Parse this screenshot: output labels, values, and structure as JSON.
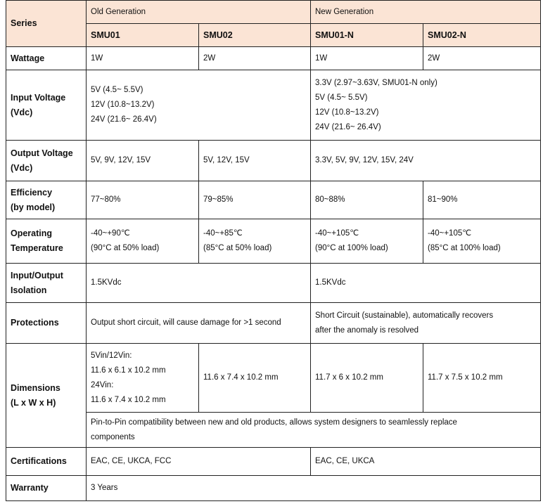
{
  "header": {
    "series_label": "Series",
    "old_generation": "Old Generation",
    "new_generation": "New Generation",
    "models": [
      "SMU01",
      "SMU02",
      "SMU01-N",
      "SMU02-N"
    ]
  },
  "colors": {
    "header_bg": "#fbe4d5",
    "border": "#222222"
  },
  "rows": {
    "wattage": {
      "label": "Wattage",
      "values": [
        "1W",
        "2W",
        "1W",
        "2W"
      ]
    },
    "input_voltage": {
      "label": [
        "Input Voltage",
        "(Vdc)"
      ],
      "old": [
        "5V (4.5~ 5.5V)",
        "12V (10.8~13.2V)",
        "24V (21.6~ 26.4V)"
      ],
      "new": [
        "3.3V (2.97~3.63V, SMU01-N only)",
        "5V (4.5~ 5.5V)",
        "12V (10.8~13.2V)",
        "24V (21.6~ 26.4V)"
      ]
    },
    "output_voltage": {
      "label": [
        "Output Voltage",
        "(Vdc)"
      ],
      "values": [
        "5V, 9V, 12V, 15V",
        "5V, 12V, 15V",
        "3.3V, 5V, 9V, 12V, 15V, 24V"
      ]
    },
    "efficiency": {
      "label": [
        "Efficiency",
        "(by model)"
      ],
      "values": [
        "77~80%",
        "79~85%",
        "80~88%",
        "81~90%"
      ]
    },
    "operating_temperature": {
      "label": [
        "Operating",
        "Temperature"
      ],
      "values": [
        [
          "-40~+90℃",
          "(90°C at 50% load)"
        ],
        [
          "-40~+85℃",
          "(85°C at 50% load)"
        ],
        [
          "-40~+105℃",
          "(90°C at 100% load)"
        ],
        [
          "-40~+105℃",
          "(85°C at 100% load)"
        ]
      ]
    },
    "isolation": {
      "label": [
        "Input/Output",
        "Isolation"
      ],
      "values": [
        "1.5KVdc",
        "1.5KVdc"
      ]
    },
    "protections": {
      "label": "Protections",
      "old": "Output short circuit, will cause damage for >1 second",
      "new": [
        "Short Circuit (sustainable), automatically recovers",
        "after the anomaly is resolved"
      ]
    },
    "dimensions": {
      "label": [
        "Dimensions",
        "(L x W x H)"
      ],
      "smu01": [
        "5Vin/12Vin:",
        "11.6 x 6.1 x 10.2 mm",
        "24Vin:",
        "11.6 x 7.4 x 10.2 mm"
      ],
      "values": [
        "11.6 x 7.4 x 10.2 mm",
        "11.7 x 6 x 10.2 mm",
        "11.7 x 7.5 x 10.2 mm"
      ],
      "note": [
        "Pin-to-Pin compatibility between new and old products, allows system designers to seamlessly replace",
        "components"
      ]
    },
    "certifications": {
      "label": "Certifications",
      "values": [
        "EAC, CE, UKCA, FCC",
        "EAC, CE, UKCA"
      ]
    },
    "warranty": {
      "label": "Warranty",
      "value": "3 Years"
    }
  }
}
